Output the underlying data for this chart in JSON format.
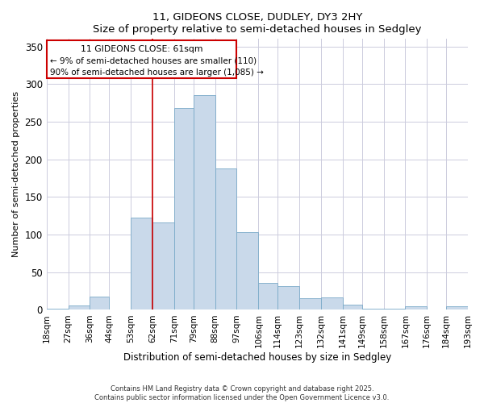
{
  "title": "11, GIDEONS CLOSE, DUDLEY, DY3 2HY",
  "subtitle": "Size of property relative to semi-detached houses in Sedgley",
  "xlabel": "Distribution of semi-detached houses by size in Sedgley",
  "ylabel": "Number of semi-detached properties",
  "bar_color": "#c9d9ea",
  "bar_edge_color": "#7aaac8",
  "vline_x": 62,
  "vline_color": "#cc0000",
  "annotation_title": "11 GIDEONS CLOSE: 61sqm",
  "annotation_line2": "← 9% of semi-detached houses are smaller (110)",
  "annotation_line3": "90% of semi-detached houses are larger (1,085) →",
  "annotation_box_color": "#cc0000",
  "bin_labels": [
    "18sqm",
    "27sqm",
    "36sqm",
    "44sqm",
    "53sqm",
    "62sqm",
    "71sqm",
    "79sqm",
    "88sqm",
    "97sqm",
    "106sqm",
    "114sqm",
    "123sqm",
    "132sqm",
    "141sqm",
    "149sqm",
    "158sqm",
    "167sqm",
    "176sqm",
    "184sqm",
    "193sqm"
  ],
  "bin_edges": [
    18,
    27,
    36,
    44,
    53,
    62,
    71,
    79,
    88,
    97,
    106,
    114,
    123,
    132,
    141,
    149,
    158,
    167,
    176,
    184,
    193
  ],
  "bar_heights": [
    2,
    6,
    18,
    0,
    123,
    116,
    268,
    285,
    188,
    103,
    36,
    32,
    15,
    17,
    7,
    2,
    2,
    5,
    0,
    5
  ],
  "ylim": [
    0,
    360
  ],
  "yticks": [
    0,
    50,
    100,
    150,
    200,
    250,
    300,
    350
  ],
  "background_color": "#ffffff",
  "grid_color": "#ccccdd",
  "footer_line1": "Contains HM Land Registry data © Crown copyright and database right 2025.",
  "footer_line2": "Contains public sector information licensed under the Open Government Licence v3.0."
}
